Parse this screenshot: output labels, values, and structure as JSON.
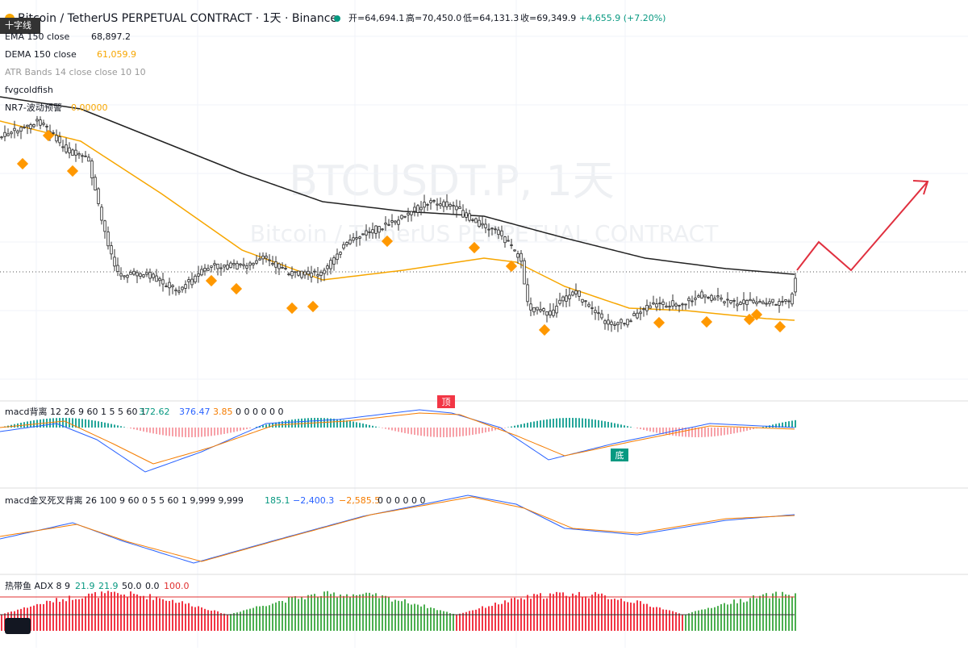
{
  "header": {
    "symbol": "Bitcoin / TetherUS PERPETUAL CONTRACT · 1天 · Binance",
    "open": "开=64,694.1",
    "high": "高=70,450.0",
    "low": "低=64,131.3",
    "close": "收=69,349.9",
    "change": "+4,655.9 (+7.20%)"
  },
  "tooltip": "十字线",
  "indicators": [
    {
      "name": "EMA 150 close",
      "value": "68,897.2"
    },
    {
      "name": "DEMA 150 close",
      "value": "61,059.9"
    },
    {
      "name": "ATR Bands 14 close close 10 10"
    },
    {
      "name": "fvgcoldfish"
    },
    {
      "name": "NR7-波动预警",
      "value": "0.00000"
    }
  ],
  "watermark": {
    "title": "BTCUSDT.P, 1天",
    "subtitle": "Bitcoin / TetherUS PERPETUAL CONTRACT"
  },
  "panels": [
    {
      "name": "macd背离 12 26 9 60 1 5 5 60 1",
      "values": [
        "372.62",
        "376.47",
        "3.85",
        "0 0 0 0 0 0"
      ],
      "markers": [
        "顶",
        "底"
      ]
    },
    {
      "name": "macd金叉死叉背离 26 100 9 60 0 5 5 60 1 9,999 9,999",
      "values": [
        "185.1",
        "−2,400.3",
        "−2,585.5",
        "0 0 0 0 0 0"
      ]
    },
    {
      "name": "热带鱼 ADX 8 9",
      "values": [
        "21.9",
        "21.9",
        "50.0",
        "0.0",
        "100.0"
      ]
    }
  ]
}
